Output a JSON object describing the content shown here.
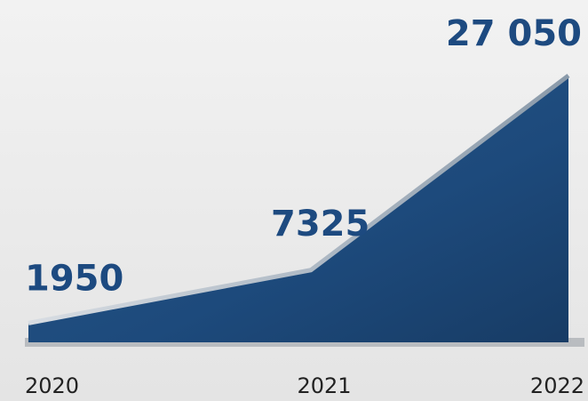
{
  "chart_data": {
    "type": "area",
    "categories": [
      "2020",
      "2021",
      "2022"
    ],
    "values": [
      1950,
      7325,
      27050
    ],
    "value_labels": [
      "1950",
      "7325",
      "27 050"
    ],
    "color": "#1d4a7c"
  }
}
